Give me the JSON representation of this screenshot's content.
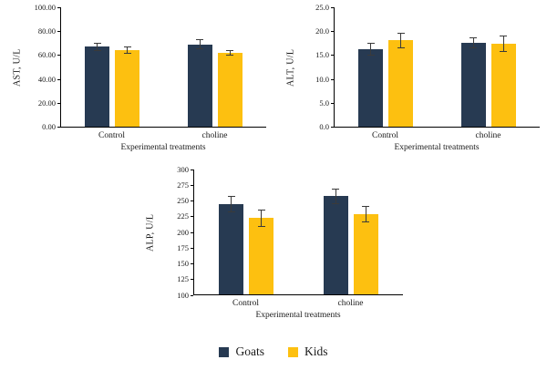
{
  "legend": {
    "items": [
      {
        "label": "Goats",
        "color": "#273a52"
      },
      {
        "label": "Kids",
        "color": "#fdc010"
      }
    ]
  },
  "chart_data": [
    {
      "id": "ast",
      "type": "bar",
      "title": "",
      "ylabel": "AST, U/L",
      "xlabel": "Experimental treatments",
      "categories": [
        "Control",
        "choline"
      ],
      "series": [
        {
          "name": "Goats",
          "color": "#273a52",
          "values": [
            67,
            69
          ],
          "errors": [
            3.5,
            4
          ]
        },
        {
          "name": "Kids",
          "color": "#fdc010",
          "values": [
            64,
            62
          ],
          "errors": [
            3,
            2.5
          ]
        }
      ],
      "ylim": [
        0,
        100
      ],
      "yticks": [
        "0.00",
        "20.00",
        "40.00",
        "60.00",
        "80.00",
        "100.00"
      ],
      "grid": false,
      "legend_position": "bottom-shared"
    },
    {
      "id": "alt",
      "type": "bar",
      "title": "",
      "ylabel": "ALT, U/L",
      "xlabel": "Experimental treatments",
      "categories": [
        "Control",
        "choline"
      ],
      "series": [
        {
          "name": "Goats",
          "color": "#273a52",
          "values": [
            16.2,
            17.6
          ],
          "errors": [
            1.3,
            1.2
          ]
        },
        {
          "name": "Kids",
          "color": "#fdc010",
          "values": [
            18.1,
            17.3
          ],
          "errors": [
            1.6,
            1.7
          ]
        }
      ],
      "ylim": [
        0,
        25
      ],
      "yticks": [
        "0.0",
        "5.0",
        "10.0",
        "15.0",
        "20.0",
        "25.0"
      ],
      "grid": false,
      "legend_position": "bottom-shared"
    },
    {
      "id": "alp",
      "type": "bar",
      "title": "",
      "ylabel": "ALP, U/L",
      "xlabel": "Experimental treatments",
      "categories": [
        "Control",
        "choline"
      ],
      "series": [
        {
          "name": "Goats",
          "color": "#273a52",
          "values": [
            245,
            257
          ],
          "errors": [
            13,
            13
          ]
        },
        {
          "name": "Kids",
          "color": "#fdc010",
          "values": [
            222,
            229
          ],
          "errors": [
            14,
            13
          ]
        }
      ],
      "ylim": [
        100,
        300
      ],
      "yticks": [
        "100",
        "125",
        "150",
        "175",
        "200",
        "225",
        "250",
        "275",
        "300"
      ],
      "grid": false,
      "legend_position": "bottom-shared"
    }
  ]
}
